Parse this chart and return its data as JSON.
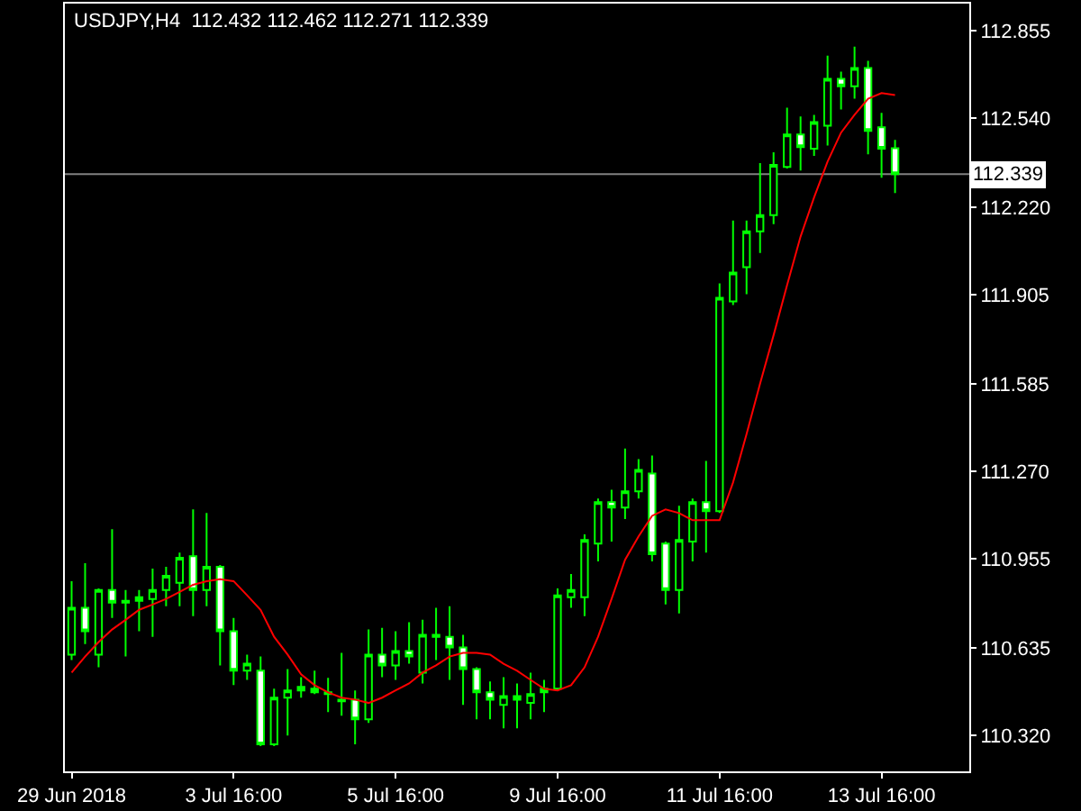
{
  "chart_data": {
    "type": "candlestick",
    "title": "USDJPY,H4  112.432 112.462 112.271 112.339",
    "categories": [
      "29 Jun 2018",
      null,
      null,
      null,
      null,
      null,
      null,
      null,
      null,
      null,
      null,
      null,
      "3 Jul 16:00",
      null,
      null,
      null,
      null,
      null,
      null,
      null,
      null,
      null,
      null,
      null,
      "5 Jul 16:00",
      null,
      null,
      null,
      null,
      null,
      null,
      null,
      null,
      null,
      null,
      null,
      "9 Jul 16:00",
      null,
      null,
      null,
      null,
      null,
      null,
      null,
      null,
      null,
      null,
      null,
      "11 Jul 16:00",
      null,
      null,
      null,
      null,
      null,
      null,
      null,
      null,
      null,
      null,
      null,
      "13 Jul 16:00",
      null
    ],
    "ohlc": [
      [
        110.611,
        110.875,
        110.591,
        110.779
      ],
      [
        110.779,
        110.94,
        110.649,
        110.695
      ],
      [
        110.611,
        110.849,
        110.565,
        110.843
      ],
      [
        110.843,
        111.062,
        110.743,
        110.798
      ],
      [
        110.804,
        110.843,
        110.604,
        110.798
      ],
      [
        110.804,
        110.843,
        110.695,
        110.817
      ],
      [
        110.811,
        110.92,
        110.675,
        110.843
      ],
      [
        110.843,
        110.927,
        110.785,
        110.894
      ],
      [
        110.869,
        110.978,
        110.785,
        110.959
      ],
      [
        110.965,
        111.133,
        110.749,
        110.843
      ],
      [
        110.843,
        111.12,
        110.785,
        110.927
      ],
      [
        110.927,
        110.933,
        110.572,
        110.695
      ],
      [
        110.695,
        110.743,
        110.501,
        110.553
      ],
      [
        110.553,
        110.611,
        110.52,
        110.578
      ],
      [
        110.553,
        110.604,
        110.282,
        110.288
      ],
      [
        110.288,
        110.488,
        110.282,
        110.456
      ],
      [
        110.456,
        110.559,
        110.32,
        110.482
      ],
      [
        110.482,
        110.53,
        110.456,
        110.495
      ],
      [
        110.488,
        110.553,
        110.469,
        110.475
      ],
      [
        110.475,
        110.527,
        110.404,
        110.469
      ],
      [
        110.443,
        110.617,
        110.391,
        110.449
      ],
      [
        110.449,
        110.482,
        110.288,
        110.378
      ],
      [
        110.378,
        110.701,
        110.365,
        110.611
      ],
      [
        110.611,
        110.707,
        110.53,
        110.572
      ],
      [
        110.572,
        110.695,
        110.52,
        110.624
      ],
      [
        110.624,
        110.727,
        110.578,
        110.604
      ],
      [
        110.546,
        110.736,
        110.507,
        110.682
      ],
      [
        110.682,
        110.779,
        110.591,
        110.675
      ],
      [
        110.675,
        110.785,
        110.52,
        110.637
      ],
      [
        110.637,
        110.682,
        110.43,
        110.559
      ],
      [
        110.559,
        110.565,
        110.378,
        110.475
      ],
      [
        110.475,
        110.514,
        110.378,
        110.449
      ],
      [
        110.43,
        110.53,
        110.346,
        110.462
      ],
      [
        110.462,
        110.507,
        110.346,
        110.449
      ],
      [
        110.437,
        110.546,
        110.378,
        110.469
      ],
      [
        110.475,
        110.52,
        110.404,
        110.488
      ],
      [
        110.488,
        110.849,
        110.482,
        110.824
      ],
      [
        110.817,
        110.901,
        110.779,
        110.843
      ],
      [
        110.817,
        111.043,
        110.749,
        111.023
      ],
      [
        111.01,
        111.172,
        110.946,
        111.159
      ],
      [
        111.159,
        111.204,
        111.017,
        111.14
      ],
      [
        111.14,
        111.352,
        111.098,
        111.198
      ],
      [
        111.198,
        111.314,
        111.172,
        111.275
      ],
      [
        111.262,
        111.327,
        110.946,
        110.972
      ],
      [
        111.01,
        111.017,
        110.791,
        110.843
      ],
      [
        110.843,
        111.146,
        110.759,
        111.023
      ],
      [
        111.017,
        111.172,
        110.946,
        111.159
      ],
      [
        111.159,
        111.307,
        110.978,
        111.127
      ],
      [
        111.127,
        111.946,
        111.12,
        111.894
      ],
      [
        111.881,
        112.172,
        111.868,
        111.985
      ],
      [
        112.004,
        112.172,
        111.907,
        112.133
      ],
      [
        112.133,
        112.378,
        112.055,
        112.191
      ],
      [
        112.191,
        112.417,
        112.159,
        112.372
      ],
      [
        112.365,
        112.578,
        112.359,
        112.481
      ],
      [
        112.481,
        112.546,
        112.352,
        112.436
      ],
      [
        112.43,
        112.552,
        112.404,
        112.526
      ],
      [
        112.513,
        112.765,
        112.442,
        112.681
      ],
      [
        112.681,
        112.707,
        112.571,
        112.655
      ],
      [
        112.655,
        112.797,
        112.61,
        112.72
      ],
      [
        112.72,
        112.746,
        112.41,
        112.494
      ],
      [
        112.507,
        112.559,
        112.326,
        112.43
      ],
      [
        112.432,
        112.462,
        112.271,
        112.339
      ]
    ],
    "series": [
      {
        "type": "line",
        "color": "#ff0000",
        "values": [
          110.546,
          110.604,
          110.656,
          110.701,
          110.736,
          110.772,
          110.791,
          110.811,
          110.836,
          110.862,
          110.875,
          110.882,
          110.875,
          110.824,
          110.772,
          110.675,
          110.611,
          110.54,
          110.501,
          110.475,
          110.456,
          110.449,
          110.437,
          110.456,
          110.482,
          110.507,
          110.546,
          110.572,
          110.604,
          110.617,
          110.617,
          110.611,
          110.578,
          110.553,
          110.52,
          110.488,
          110.482,
          110.501,
          110.565,
          110.675,
          110.811,
          110.952,
          111.036,
          111.11,
          111.133,
          111.12,
          111.094,
          111.094,
          111.094,
          111.23,
          111.404,
          111.585,
          111.759,
          111.939,
          112.114,
          112.255,
          112.384,
          112.488,
          112.552,
          112.61,
          112.63,
          112.623
        ]
      }
    ],
    "ylim": [
      110.191,
      112.952
    ],
    "yticks": [
      {
        "value": 110.32,
        "label": "110.320"
      },
      110.635,
      110.955,
      {
        "value": 111.27,
        "label": "111.270"
      },
      111.585,
      111.905,
      {
        "value": 112.22,
        "label": "112.220"
      },
      {
        "value": 112.54,
        "label": "112.540"
      },
      112.855
    ],
    "ref_lines": [
      {
        "axis": "y",
        "value": 112.339,
        "label": "112.339",
        "color": "#808080"
      }
    ]
  }
}
